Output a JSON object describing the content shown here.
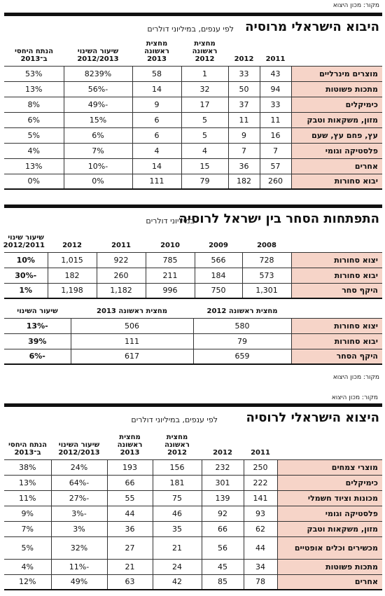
{
  "source_top": "מקור: מכון היצוא",
  "imports": {
    "title": "היבוא הישראלי מרוסיה",
    "subtitle": "לפי ענפים, במיליוני דולרים",
    "headers": [
      "",
      "2011",
      "2012",
      "מחצית ראשונה 2012",
      "מחצית ראשונה 2013",
      "שיעור השינוי 2012/2013",
      "הנתח היחסי ב־2013"
    ],
    "rows": [
      [
        "מוצרים מינרליים",
        "43",
        "33",
        "1",
        "58",
        "8239%",
        "53%"
      ],
      [
        "מתכות פשוטות",
        "94",
        "50",
        "32",
        "14",
        "-56%",
        "13%"
      ],
      [
        "כימיקלים",
        "33",
        "37",
        "17",
        "9",
        "-49%",
        "8%"
      ],
      [
        "מזון, משקאות וטבק",
        "11",
        "11",
        "5",
        "6",
        "15%",
        "6%"
      ],
      [
        "עץ, פחם עץ, שעם",
        "16",
        "9",
        "5",
        "6",
        "6%",
        "5%"
      ],
      [
        "פלסטיקה וגומי",
        "7",
        "7",
        "4",
        "4",
        "7%",
        "4%"
      ],
      [
        "אחרים",
        "57",
        "36",
        "15",
        "14",
        "-10%",
        "13%"
      ],
      [
        "יבוא סחורות",
        "260",
        "182",
        "79",
        "111",
        "0%",
        "0%"
      ]
    ]
  },
  "trade": {
    "title": "התפתחות הסחר בין ישראל לרוסיה",
    "subtitle": "במיליוני דולרים",
    "headers": [
      "",
      "2008",
      "2009",
      "2010",
      "2011",
      "2012",
      "שיעור שינוי 2012/2011"
    ],
    "rows": [
      [
        "יצוא סחורות",
        "728",
        "566",
        "785",
        "922",
        "1,015",
        "10%"
      ],
      [
        "יבוא סחורות",
        "573",
        "184",
        "211",
        "260",
        "182",
        "-30%"
      ],
      [
        "היקף סחר",
        "1,301",
        "750",
        "996",
        "1,182",
        "1,198",
        "1%"
      ]
    ],
    "half_headers": [
      "",
      "מחצית ראשונה 2012",
      "מחצית ראשונה 2013",
      "שיעור השינוי"
    ],
    "half_rows": [
      [
        "יצוא סחורות",
        "580",
        "506",
        "-13%"
      ],
      [
        "יבוא סחורות",
        "79",
        "111",
        "39%"
      ],
      [
        "היקף הסחר",
        "659",
        "617",
        "-6%"
      ]
    ],
    "source": "מקור: מכון היצוא"
  },
  "source_mid": "מקור: מכון היצוא",
  "exports": {
    "title": "היצוא הישראלי לרוסיה",
    "subtitle": "לפי ענפים, במיליוני דולרים",
    "headers": [
      "",
      "2011",
      "2012",
      "מחצית ראשונה 2012",
      "מחצית ראשונה 2013",
      "שיעור השינוי 2012/2013",
      "הנתח היחסי ב־2013"
    ],
    "rows": [
      [
        "מוצרי צמחים",
        "250",
        "232",
        "156",
        "193",
        "24%",
        "38%"
      ],
      [
        "כימיקלים",
        "222",
        "301",
        "181",
        "66",
        "-64%",
        "13%"
      ],
      [
        "מכונות וציוד חשמלי",
        "141",
        "139",
        "75",
        "55",
        "-27%",
        "11%"
      ],
      [
        "פלסטיקה וגומי",
        "93",
        "92",
        "46",
        "44",
        "-3%",
        "9%"
      ],
      [
        "מזון, משקאות וטבק",
        "62",
        "66",
        "35",
        "36",
        "3%",
        "7%"
      ],
      [
        "מכשירים וכלים אופטיים",
        "44",
        "56",
        "21",
        "27",
        "32%",
        "5%"
      ],
      [
        "מתכות פשוטות",
        "34",
        "45",
        "24",
        "21",
        "-11%",
        "4%"
      ],
      [
        "אחרים",
        "78",
        "85",
        "42",
        "63",
        "49%",
        "12%"
      ]
    ]
  }
}
